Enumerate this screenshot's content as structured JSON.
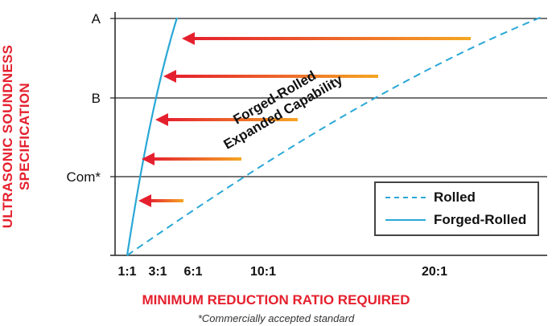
{
  "chart_data": {
    "type": "line",
    "ylabel_lines": [
      "ULTRASONIC SOUNDNESS",
      "SPECIFICATION"
    ],
    "xlabel": "MINIMUM REDUCTION RATIO REQUIRED",
    "footnote": "*Commercially accepted standard",
    "x_ticks": [
      "1:1",
      "3:1",
      "6:1",
      "10:1",
      "20:1"
    ],
    "y_ticks": [
      "Com*",
      "B",
      "A"
    ],
    "series": [
      {
        "name": "Rolled",
        "style": "dashed",
        "color": "#2aa8d6"
      },
      {
        "name": "Forged-Rolled",
        "style": "solid",
        "color": "#2aa8d6"
      }
    ],
    "annotation_lines": [
      "Forged-Rolled",
      "Expanded Capability"
    ],
    "arrow_count": 5,
    "arrow_colors": {
      "head": "#e5202e",
      "tail": "#f5a623"
    }
  }
}
